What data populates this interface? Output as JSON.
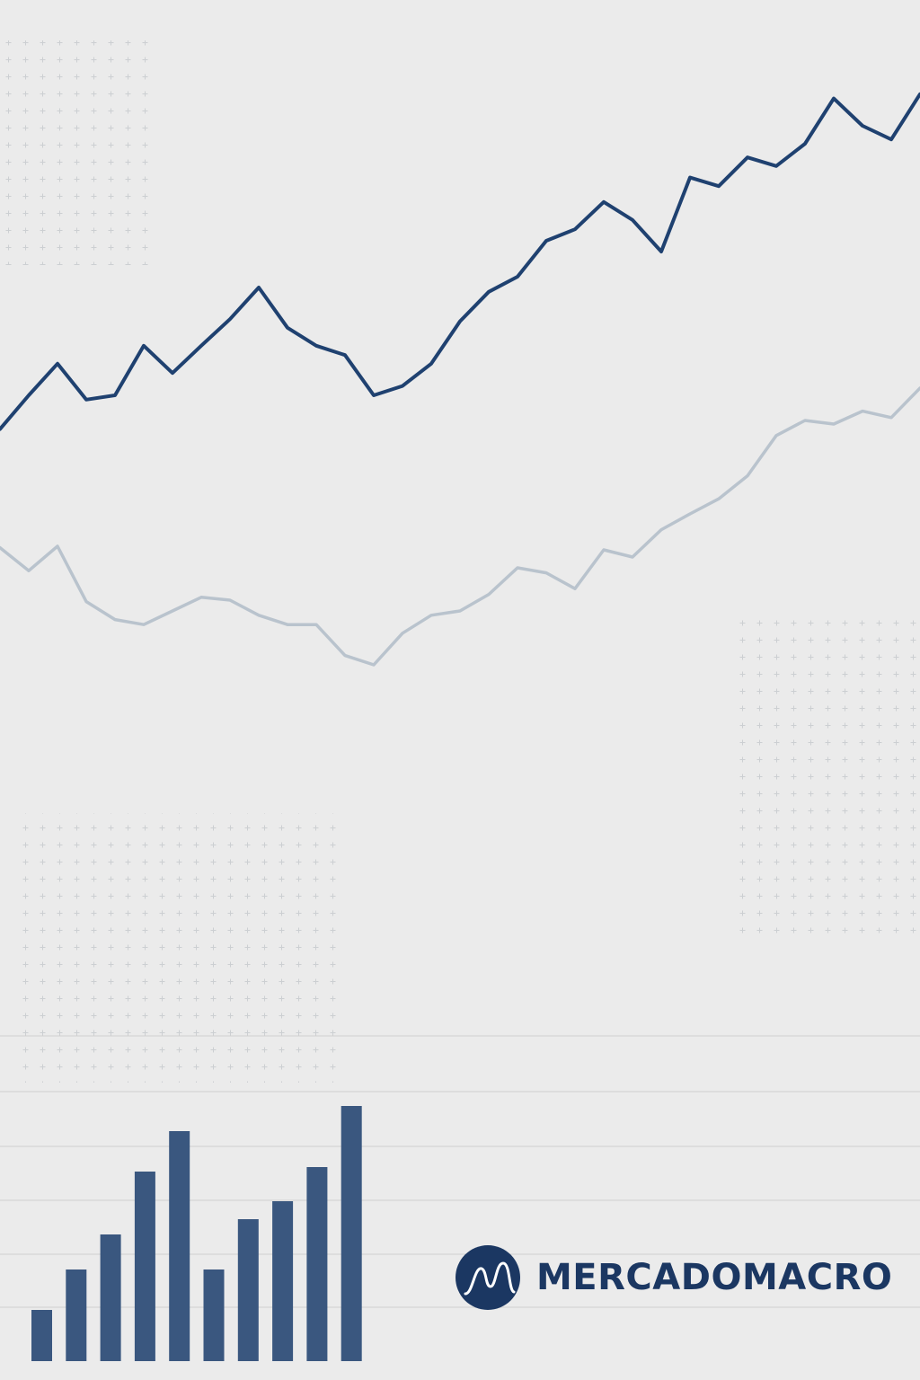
{
  "brand": "MERCADOMACRO",
  "chart_data": [
    {
      "type": "line",
      "ylim": [
        0,
        100
      ],
      "series": [
        {
          "color": "#1f4170",
          "values": [
            40.3,
            45,
            49.4,
            44.4,
            45,
            51.9,
            48.1,
            51.9,
            55.6,
            60,
            54.4,
            51.9,
            50.6,
            45,
            46.3,
            49.4,
            55.3,
            59.4,
            61.5,
            66.5,
            68.1,
            71.9,
            69.4,
            65,
            75.3,
            74.1,
            78.1,
            76.9,
            80,
            86.3,
            82.5,
            80.6,
            86.9
          ]
        },
        {
          "color": "#b9c3cd",
          "values": [
            23.8,
            20.6,
            24,
            16.3,
            13.8,
            13.1,
            15,
            16.9,
            16.5,
            14.4,
            13.1,
            13.1,
            8.8,
            7.5,
            11.9,
            14.4,
            15,
            17.3,
            21,
            20.3,
            18.1,
            23.5,
            22.5,
            26.3,
            28.5,
            30.6,
            33.8,
            39.4,
            41.5,
            41,
            42.8,
            41.9,
            46
          ]
        }
      ]
    },
    {
      "type": "bar",
      "ylim": [
        0,
        300
      ],
      "color": "#3a577f",
      "values": [
        57,
        102,
        141,
        211,
        256,
        102,
        158,
        178,
        216,
        284
      ]
    }
  ]
}
